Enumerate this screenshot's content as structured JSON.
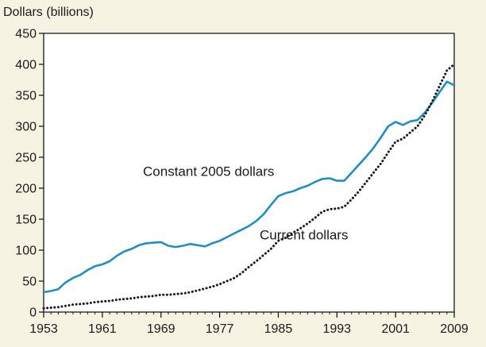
{
  "chart_data": {
    "type": "line",
    "ylabel": "Dollars (billions)",
    "xlim": [
      1953,
      2009
    ],
    "ylim": [
      0,
      450
    ],
    "x_ticks": [
      1953,
      1961,
      1969,
      1977,
      1985,
      1993,
      2001,
      2009
    ],
    "y_ticks": [
      0,
      50,
      100,
      150,
      200,
      250,
      300,
      350,
      400,
      450
    ],
    "grid": false,
    "colors": {
      "plot_background": "#ffffff",
      "page_background": "#f7f3e3",
      "frame": "#1a1a1a"
    },
    "series": [
      {
        "name": "Constant 2005 dollars",
        "color": "#1f8ec5",
        "style": "solid",
        "x": [
          1953,
          1954,
          1955,
          1956,
          1957,
          1958,
          1959,
          1960,
          1961,
          1962,
          1963,
          1964,
          1965,
          1966,
          1967,
          1968,
          1969,
          1970,
          1971,
          1972,
          1973,
          1974,
          1975,
          1976,
          1977,
          1978,
          1979,
          1980,
          1981,
          1982,
          1983,
          1984,
          1985,
          1986,
          1987,
          1988,
          1989,
          1990,
          1991,
          1992,
          1993,
          1994,
          1995,
          1996,
          1997,
          1998,
          1999,
          2000,
          2001,
          2002,
          2003,
          2004,
          2005,
          2006,
          2007,
          2008,
          2009
        ],
        "values": [
          32,
          34,
          37,
          48,
          55,
          60,
          68,
          74,
          77,
          82,
          91,
          98,
          102,
          108,
          111,
          112,
          113,
          107,
          105,
          107,
          110,
          108,
          106,
          111,
          115,
          121,
          127,
          133,
          139,
          147,
          158,
          173,
          187,
          192,
          195,
          200,
          204,
          210,
          215,
          216,
          212,
          212,
          225,
          238,
          251,
          265,
          282,
          300,
          307,
          302,
          308,
          310,
          322,
          338,
          355,
          372,
          366
        ]
      },
      {
        "name": "Current dollars",
        "color": "#1a1a1a",
        "style": "dotted",
        "x": [
          1953,
          1954,
          1955,
          1956,
          1957,
          1958,
          1959,
          1960,
          1961,
          1962,
          1963,
          1964,
          1965,
          1966,
          1967,
          1968,
          1969,
          1970,
          1971,
          1972,
          1973,
          1974,
          1975,
          1976,
          1977,
          1978,
          1979,
          1980,
          1981,
          1982,
          1983,
          1984,
          1985,
          1986,
          1987,
          1988,
          1989,
          1990,
          1991,
          1992,
          1993,
          1994,
          1995,
          1996,
          1997,
          1998,
          1999,
          2000,
          2001,
          2002,
          2003,
          2004,
          2005,
          2006,
          2007,
          2008,
          2009
        ],
        "values": [
          6,
          7,
          8,
          10,
          12,
          13,
          14,
          16,
          17,
          18,
          20,
          21,
          22,
          24,
          25,
          26,
          28,
          28,
          29,
          30,
          32,
          35,
          38,
          41,
          45,
          50,
          55,
          63,
          73,
          82,
          92,
          102,
          115,
          120,
          128,
          135,
          143,
          152,
          162,
          166,
          167,
          170,
          182,
          195,
          210,
          225,
          240,
          258,
          275,
          280,
          290,
          300,
          318,
          340,
          365,
          390,
          400
        ]
      }
    ],
    "annotations": [
      {
        "text": "Constant 2005 dollars",
        "series": 0,
        "x": 1975.5,
        "y": 220
      },
      {
        "text": "Current dollars",
        "series": 1,
        "x": 1988.5,
        "y": 117
      }
    ]
  }
}
